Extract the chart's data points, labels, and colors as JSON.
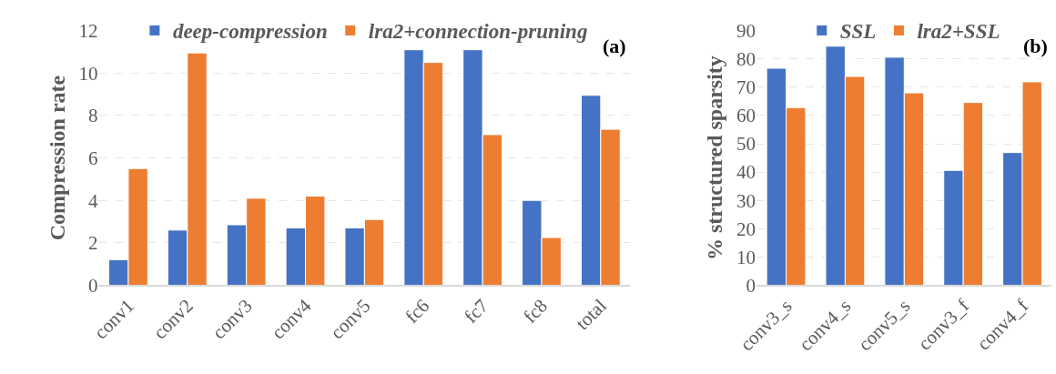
{
  "chart_data": [
    {
      "type": "bar",
      "ylabel": "Compression rate",
      "categories": [
        "conv1",
        "conv2",
        "conv3",
        "conv4",
        "conv5",
        "fc6",
        "fc7",
        "fc8",
        "total"
      ],
      "series": [
        {
          "name": "deep-compression",
          "color": "#4472c4",
          "values": [
            1.2,
            2.6,
            2.85,
            2.7,
            2.7,
            11.1,
            11.1,
            4.0,
            8.95
          ]
        },
        {
          "name": "lra2+connection-pruning",
          "color": "#ed7d31",
          "values": [
            5.5,
            10.95,
            4.1,
            4.2,
            3.1,
            10.5,
            7.1,
            2.25,
            7.35
          ]
        }
      ],
      "ylim": [
        0,
        12
      ],
      "yticks": [
        0,
        2,
        4,
        6,
        8,
        10,
        12
      ],
      "grid": "y",
      "legend": "top",
      "annotations": [
        "(a)"
      ]
    },
    {
      "type": "bar",
      "ylabel": "% structured sparsity",
      "categories": [
        "conv3_s",
        "conv4_s",
        "conv5_s",
        "conv3_f",
        "conv4_f"
      ],
      "series": [
        {
          "name": "SSL",
          "color": "#4472c4",
          "values": [
            76.7,
            84.5,
            80.6,
            40.6,
            46.9
          ]
        },
        {
          "name": "lra2+SSL",
          "color": "#ed7d31",
          "values": [
            62.8,
            73.8,
            68,
            64.6,
            71.9
          ]
        }
      ],
      "ylim": [
        0,
        90
      ],
      "yticks": [
        0,
        10,
        20,
        30,
        40,
        50,
        60,
        70,
        80,
        90
      ],
      "grid": "y",
      "legend": "top",
      "annotations": [
        "(b)"
      ]
    }
  ]
}
